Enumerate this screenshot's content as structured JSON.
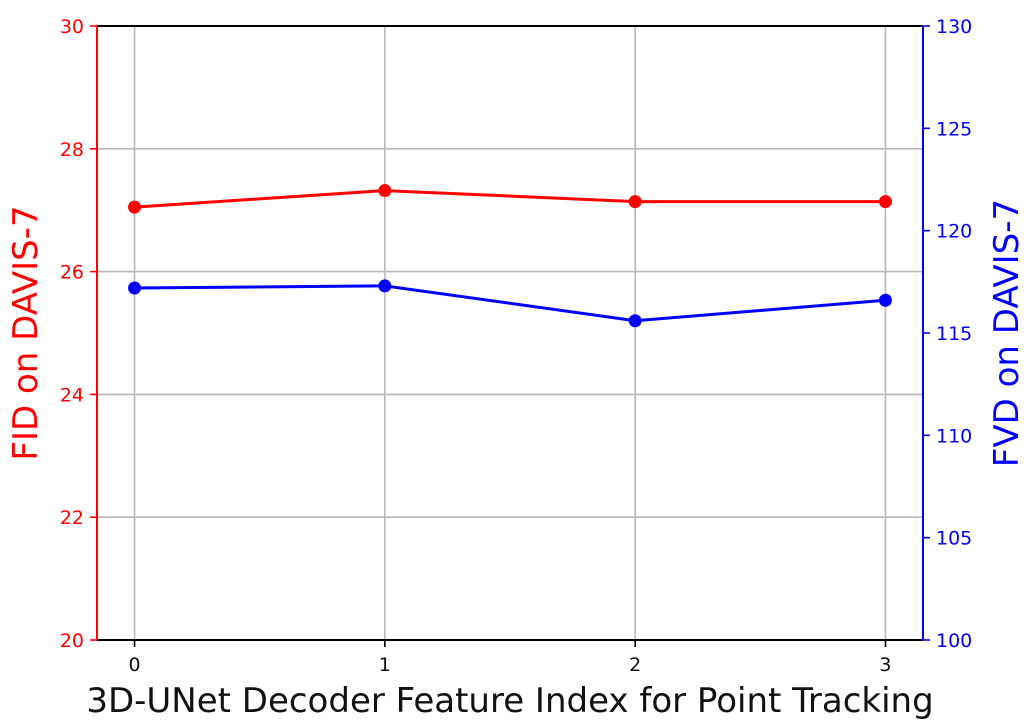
{
  "chart_data": {
    "type": "line",
    "xlabel": "3D-UNet Decoder Feature Index for Point Tracking",
    "y_left_label": "FID on DAVIS-7",
    "y_right_label": "FVD on DAVIS-7",
    "x": [
      0,
      1,
      2,
      3
    ],
    "xlim": [
      -0.15,
      3.15
    ],
    "x_ticks": [
      "0",
      "1",
      "2",
      "3"
    ],
    "ylim_left": [
      20,
      30
    ],
    "y_left_ticks": [
      "20",
      "22",
      "24",
      "26",
      "28",
      "30"
    ],
    "ylim_right": [
      100,
      130
    ],
    "y_right_ticks": [
      "100",
      "105",
      "110",
      "115",
      "120",
      "125",
      "130"
    ],
    "grid": true,
    "series": [
      {
        "axis": "left",
        "color": "#ff0000",
        "values": [
          27.05,
          27.32,
          27.14,
          27.14
        ]
      },
      {
        "axis": "right",
        "color": "#0000ff",
        "values": [
          117.2,
          117.3,
          115.6,
          116.6
        ]
      }
    ]
  }
}
